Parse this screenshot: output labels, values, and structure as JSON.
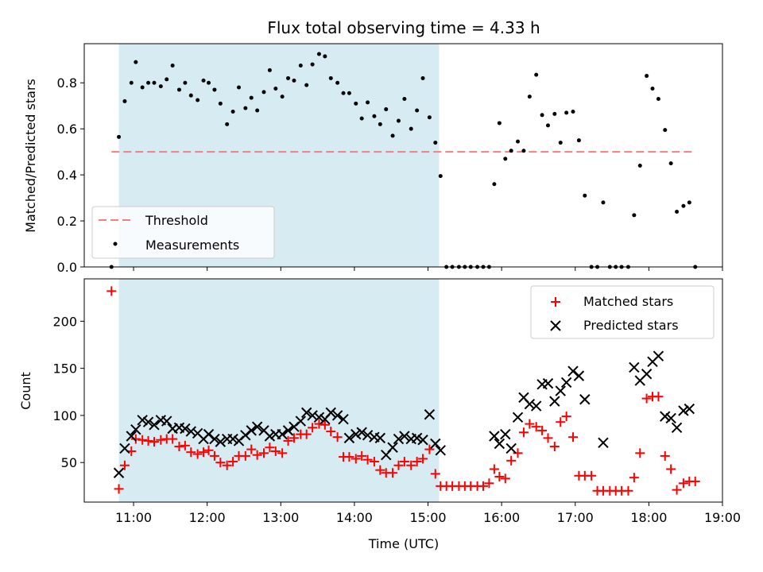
{
  "chart_data": [
    {
      "type": "scatter",
      "title": "Flux total observing time = 4.33 h",
      "xlabel": "",
      "ylabel": "Matched/Predicted stars",
      "xlim_hours": [
        10.33,
        19.0
      ],
      "ylim": [
        0,
        0.97
      ],
      "yticks": [
        0.0,
        0.2,
        0.4,
        0.6,
        0.8
      ],
      "ytick_labels": [
        "0.0",
        "0.2",
        "0.4",
        "0.6",
        "0.8"
      ],
      "shaded_range_hours": [
        10.8,
        15.15
      ],
      "shade_color": "#add8e6",
      "legend_position": "lower-left",
      "legend": [
        "Threshold",
        "Measurements"
      ],
      "threshold": {
        "name": "Threshold",
        "value": 0.5,
        "x_range": [
          10.7,
          18.6
        ],
        "color": "#f08080"
      },
      "series": [
        {
          "name": "Measurements",
          "color": "#000000",
          "x": [
            10.7,
            10.8,
            10.88,
            10.97,
            11.03,
            11.12,
            11.2,
            11.28,
            11.37,
            11.45,
            11.53,
            11.62,
            11.7,
            11.78,
            11.87,
            11.95,
            12.02,
            12.1,
            12.18,
            12.27,
            12.35,
            12.43,
            12.52,
            12.6,
            12.68,
            12.77,
            12.85,
            12.93,
            13.02,
            13.1,
            13.18,
            13.27,
            13.35,
            13.43,
            13.52,
            13.6,
            13.68,
            13.77,
            13.85,
            13.93,
            14.02,
            14.1,
            14.18,
            14.27,
            14.35,
            14.43,
            14.52,
            14.6,
            14.68,
            14.77,
            14.85,
            14.93,
            15.02,
            15.1,
            15.17,
            15.25,
            15.33,
            15.42,
            15.5,
            15.58,
            15.67,
            15.75,
            15.83,
            15.9,
            15.97,
            16.05,
            16.13,
            16.22,
            16.3,
            16.38,
            16.47,
            16.55,
            16.63,
            16.72,
            16.8,
            16.88,
            16.97,
            17.05,
            17.13,
            17.22,
            17.3,
            17.38,
            17.47,
            17.55,
            17.63,
            17.72,
            17.8,
            17.88,
            17.97,
            18.05,
            18.13,
            18.22,
            18.3,
            18.38,
            18.47,
            18.55,
            18.63
          ],
          "y": [
            0.0,
            0.565,
            0.72,
            0.8,
            0.89,
            0.78,
            0.8,
            0.8,
            0.785,
            0.815,
            0.875,
            0.77,
            0.8,
            0.745,
            0.725,
            0.81,
            0.8,
            0.77,
            0.71,
            0.62,
            0.675,
            0.78,
            0.69,
            0.735,
            0.68,
            0.76,
            0.855,
            0.775,
            0.74,
            0.82,
            0.81,
            0.875,
            0.79,
            0.88,
            0.925,
            0.915,
            0.82,
            0.8,
            0.755,
            0.755,
            0.71,
            0.645,
            0.715,
            0.655,
            0.62,
            0.685,
            0.57,
            0.635,
            0.73,
            0.6,
            0.68,
            0.82,
            0.65,
            0.54,
            0.395,
            0.0,
            0.0,
            0.0,
            0.0,
            0.0,
            0.0,
            0.0,
            0.0,
            0.36,
            0.625,
            0.47,
            0.505,
            0.545,
            0.505,
            0.74,
            0.835,
            0.66,
            0.615,
            0.665,
            0.54,
            0.67,
            0.675,
            0.55,
            0.31,
            0.0,
            0.0,
            0.28,
            0.0,
            0.0,
            0.0,
            0.0,
            0.225,
            0.44,
            0.83,
            0.775,
            0.73,
            0.595,
            0.45,
            0.24,
            0.265,
            0.28,
            0.0
          ]
        }
      ]
    },
    {
      "type": "scatter",
      "title": "",
      "xlabel": "Time (UTC)",
      "ylabel": "Count",
      "xlim_hours": [
        10.33,
        19.0
      ],
      "ylim": [
        8,
        245
      ],
      "yticks": [
        50,
        100,
        150,
        200
      ],
      "ytick_labels": [
        "50",
        "100",
        "150",
        "200"
      ],
      "xticks_hours": [
        11,
        12,
        13,
        14,
        15,
        16,
        17,
        18,
        19
      ],
      "xtick_labels": [
        "11:00",
        "12:00",
        "13:00",
        "14:00",
        "15:00",
        "16:00",
        "17:00",
        "18:00",
        "19:00"
      ],
      "shaded_range_hours": [
        10.8,
        15.15
      ],
      "shade_color": "#add8e6",
      "legend_position": "upper-right",
      "legend": [
        "Matched stars",
        "Predicted stars"
      ],
      "series": [
        {
          "name": "Matched stars",
          "marker": "+",
          "color": "#ff0000",
          "x": [
            10.7,
            10.8,
            10.88,
            10.97,
            11.03,
            11.12,
            11.2,
            11.28,
            11.37,
            11.45,
            11.53,
            11.62,
            11.7,
            11.78,
            11.87,
            11.95,
            12.02,
            12.1,
            12.18,
            12.27,
            12.35,
            12.43,
            12.52,
            12.6,
            12.68,
            12.77,
            12.85,
            12.93,
            13.02,
            13.1,
            13.18,
            13.27,
            13.35,
            13.43,
            13.52,
            13.6,
            13.68,
            13.77,
            13.85,
            13.93,
            14.02,
            14.1,
            14.18,
            14.27,
            14.35,
            14.43,
            14.52,
            14.6,
            14.68,
            14.77,
            14.85,
            14.93,
            15.02,
            15.1,
            15.17,
            15.25,
            15.33,
            15.42,
            15.5,
            15.58,
            15.67,
            15.75,
            15.83,
            15.9,
            15.97,
            16.05,
            16.13,
            16.22,
            16.3,
            16.38,
            16.47,
            16.55,
            16.63,
            16.72,
            16.8,
            16.88,
            16.97,
            17.05,
            17.13,
            17.22,
            17.3,
            17.38,
            17.47,
            17.55,
            17.63,
            17.72,
            17.8,
            17.88,
            17.97,
            18.05,
            18.13,
            18.22,
            18.3,
            18.38,
            18.47,
            18.55,
            18.63
          ],
          "y": [
            232,
            22,
            47,
            62,
            75,
            74,
            73,
            72,
            74,
            75,
            75,
            67,
            68,
            61,
            59,
            61,
            63,
            57,
            50,
            47,
            51,
            57,
            57,
            64,
            58,
            60,
            66,
            62,
            60,
            73,
            76,
            80,
            80,
            87,
            91,
            90,
            83,
            77,
            56,
            56,
            54,
            57,
            53,
            51,
            42,
            39,
            39,
            47,
            51,
            47,
            51,
            54,
            64,
            38,
            25,
            25,
            25,
            25,
            25,
            25,
            25,
            25,
            28,
            43,
            35,
            33,
            52,
            60,
            82,
            91,
            88,
            84,
            76,
            67,
            93,
            99,
            77,
            36,
            36,
            36,
            20,
            20,
            20,
            20,
            20,
            20,
            34,
            60,
            118,
            120,
            120,
            57,
            43,
            21,
            28,
            30,
            30
          ]
        },
        {
          "name": "Predicted stars",
          "marker": "x",
          "color": "#000000",
          "x": [
            10.8,
            10.88,
            10.97,
            11.03,
            11.12,
            11.2,
            11.28,
            11.37,
            11.45,
            11.53,
            11.62,
            11.7,
            11.78,
            11.87,
            11.95,
            12.02,
            12.1,
            12.18,
            12.27,
            12.35,
            12.43,
            12.52,
            12.6,
            12.68,
            12.77,
            12.85,
            12.93,
            13.02,
            13.1,
            13.18,
            13.27,
            13.35,
            13.43,
            13.52,
            13.6,
            13.68,
            13.77,
            13.85,
            13.93,
            14.02,
            14.1,
            14.18,
            14.27,
            14.35,
            14.43,
            14.52,
            14.6,
            14.68,
            14.77,
            14.85,
            14.93,
            15.02,
            15.1,
            15.17,
            15.9,
            15.97,
            16.05,
            16.13,
            16.22,
            16.3,
            16.38,
            16.47,
            16.55,
            16.63,
            16.72,
            16.8,
            16.88,
            16.97,
            17.05,
            17.13,
            17.38,
            17.8,
            17.88,
            17.97,
            18.05,
            18.13,
            18.22,
            18.3,
            18.38,
            18.47,
            18.55
          ],
          "y": [
            39,
            65,
            78,
            85,
            95,
            93,
            90,
            95,
            94,
            86,
            87,
            86,
            83,
            81,
            75,
            80,
            75,
            72,
            75,
            75,
            73,
            79,
            84,
            88,
            84,
            78,
            80,
            80,
            84,
            88,
            94,
            103,
            100,
            98,
            96,
            103,
            100,
            96,
            76,
            80,
            82,
            79,
            77,
            76,
            58,
            66,
            75,
            78,
            75,
            76,
            74,
            101,
            70,
            63,
            78,
            70,
            80,
            65,
            98,
            119,
            112,
            110,
            133,
            134,
            115,
            126,
            135,
            147,
            142,
            117,
            71,
            151,
            137,
            144,
            157,
            163,
            99,
            97,
            87,
            105,
            107
          ]
        }
      ]
    }
  ]
}
